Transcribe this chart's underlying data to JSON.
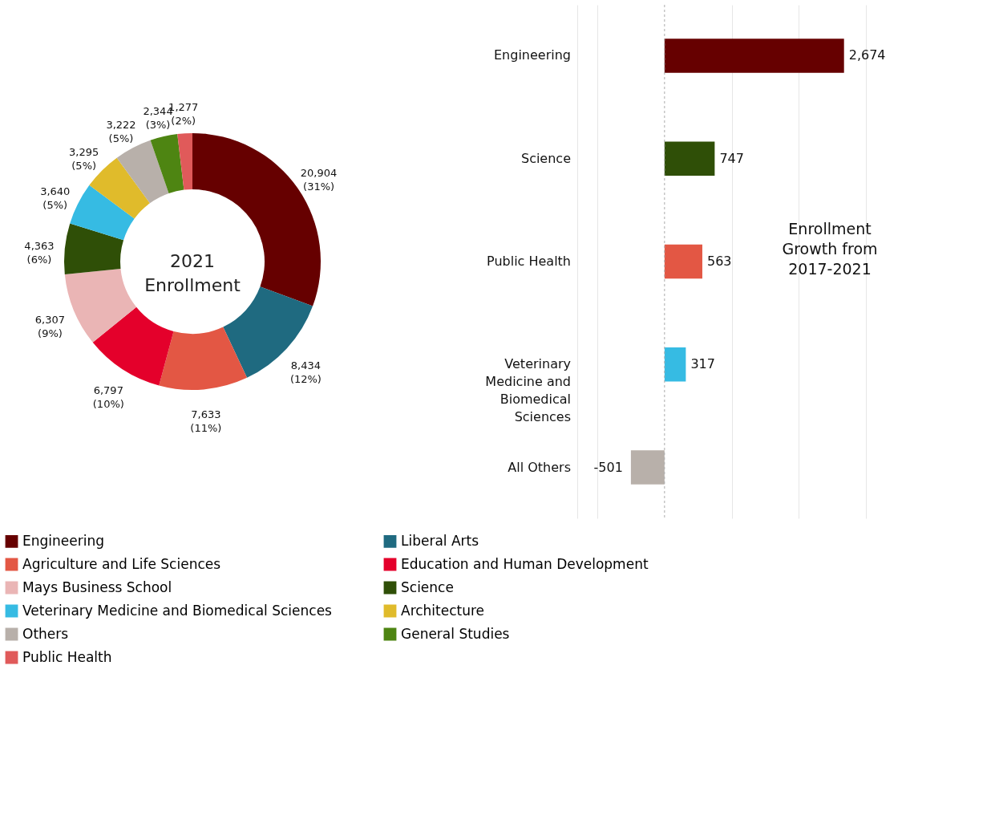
{
  "chart_data": [
    {
      "type": "donut",
      "title": "2021 Enrollment",
      "categories": [
        "Engineering",
        "Liberal Arts",
        "Agriculture and Life Sciences",
        "Education and Human Development",
        "Mays Business School",
        "Science",
        "Veterinary Medicine and Biomedical Sciences",
        "Architecture",
        "Others",
        "General Studies",
        "Public Health"
      ],
      "values": [
        20904,
        8434,
        7633,
        6797,
        6307,
        4363,
        3640,
        3295,
        3222,
        2344,
        1277
      ],
      "value_labels": [
        "20,904 (31%)",
        "8,434 (12%)",
        "7,633 (11%)",
        "6,797 (10%)",
        "6,307 (9%)",
        "4,363 (6%)",
        "3,640 (5%)",
        "3,295 (5%)",
        "3,222 (5%)",
        "2,344 (3%)",
        "1,277 (2%)"
      ],
      "colors": [
        "#660000",
        "#1f6a80",
        "#e35744",
        "#e4002b",
        "#eab5b5",
        "#2f4f07",
        "#36bbe3",
        "#e0bb2b",
        "#b8b0aa",
        "#4e8512",
        "#e05a5a"
      ],
      "legend": "bottom"
    },
    {
      "type": "bar",
      "orientation": "horizontal",
      "title": "Enrollment Growth from 2017-2021",
      "categories": [
        "Engineering",
        "Science",
        "Public Health",
        "Veterinary Medicine and Biomedical Sciences",
        "All Others"
      ],
      "values": [
        2674,
        747,
        563,
        317,
        -501
      ],
      "colors": [
        "#660000",
        "#2f4f07",
        "#e35744",
        "#36bbe3",
        "#b8b0aa"
      ],
      "value_labels": [
        "2,674",
        "747",
        "563",
        "317",
        "-501"
      ],
      "xlim": [
        -1300,
        3000
      ],
      "xticks": [
        {
          "value": -1300,
          "label": null
        },
        {
          "value": -1000,
          "label": null
        },
        {
          "value": 1000,
          "label": null
        },
        {
          "value": 2000,
          "label": null
        },
        {
          "value": 3000,
          "label": null
        }
      ],
      "grid": "x",
      "tick_labels": false,
      "ref_lines": [
        {
          "axis": "x",
          "value": 0,
          "line_style": "dashed",
          "color": "#aaaaaa"
        }
      ]
    }
  ]
}
